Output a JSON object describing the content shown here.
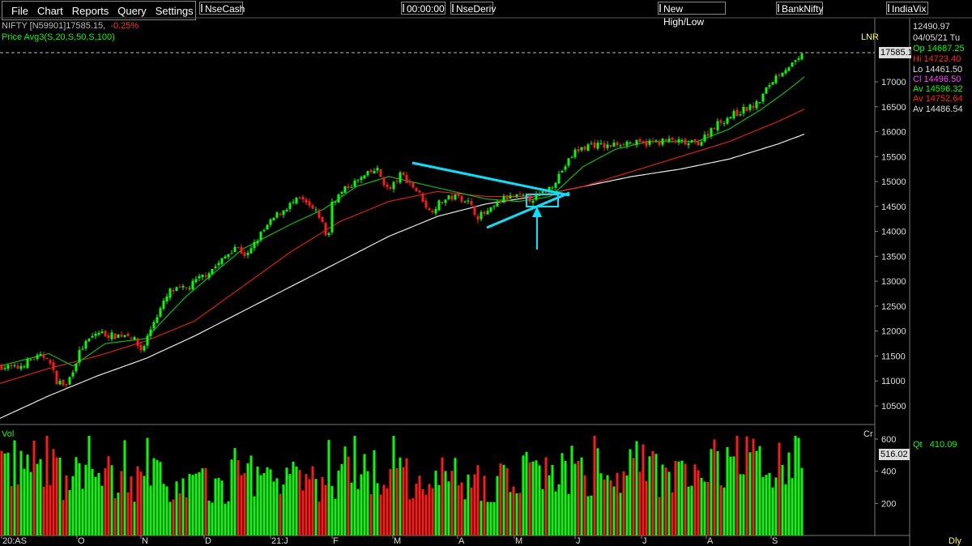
{
  "menu": [
    "File",
    "Chart",
    "Reports",
    "Query",
    "Settings"
  ],
  "toolbar": {
    "nsecash": "NseCash",
    "clock": "00:00:00",
    "nsederiv": "NseDeriv",
    "newhighlow": "New High/Low",
    "banknifty": "BankNifty",
    "indiavix": "IndiaVix"
  },
  "header": {
    "symbol": "NIFTY [N59901]",
    "last": "17585.15",
    "change": "-0.25%",
    "indicator": "Price  Avg3(S,20,S,50,S,100)"
  },
  "info": {
    "top": "12490.97",
    "date": "04/05/21 Tu",
    "op": "Op 14687.25",
    "hi": "Hi  14723.40",
    "lo": "Lo  14461.50",
    "cl": "Cl  14496.50",
    "av1": "Av 14596.32",
    "av2": "Av 14752.64",
    "av3": "Av 14486.54"
  },
  "lnr": "LNR",
  "current_price_box": "17585.1",
  "vol_label": "Vol",
  "cr_label": "Cr",
  "qt": "Qt",
  "qt_value": "410.09",
  "vol_box": "516.02",
  "dly": "Dly",
  "colors": {
    "up": "#00ff00",
    "down": "#ff1a1a",
    "ma20": "#00c000",
    "ma50": "#e01818",
    "ma100": "#e8e8e8",
    "annot": "#00e5ff"
  },
  "chart_data": {
    "type": "candlestick",
    "price_axis": {
      "ticks": [
        10500,
        11000,
        11500,
        12000,
        12500,
        13000,
        13500,
        14000,
        14500,
        15000,
        15500,
        16000,
        16500,
        17000
      ],
      "range": [
        10200,
        17900
      ]
    },
    "volume_axis": {
      "ticks": [
        200,
        400,
        600
      ],
      "range": [
        0,
        640
      ]
    },
    "x_labels": [
      "20:AS",
      "O",
      "N",
      "D",
      "21:J",
      "F",
      "M",
      "A",
      "M",
      "J",
      "J",
      "A",
      "S"
    ],
    "close_points": [
      [
        0,
        11300
      ],
      [
        20,
        11250
      ],
      [
        40,
        11450
      ],
      [
        58,
        11500
      ],
      [
        70,
        11000
      ],
      [
        82,
        10900
      ],
      [
        100,
        11650
      ],
      [
        120,
        11980
      ],
      [
        140,
        11900
      ],
      [
        160,
        11950
      ],
      [
        175,
        11600
      ],
      [
        190,
        12200
      ],
      [
        210,
        12800
      ],
      [
        230,
        12850
      ],
      [
        250,
        13100
      ],
      [
        270,
        13350
      ],
      [
        290,
        13700
      ],
      [
        305,
        13500
      ],
      [
        320,
        13900
      ],
      [
        340,
        14300
      ],
      [
        355,
        14500
      ],
      [
        370,
        14650
      ],
      [
        385,
        14450
      ],
      [
        395,
        14300
      ],
      [
        405,
        13800
      ],
      [
        410,
        14600
      ],
      [
        430,
        14900
      ],
      [
        450,
        15100
      ],
      [
        465,
        15250
      ],
      [
        480,
        14800
      ],
      [
        495,
        15150
      ],
      [
        510,
        14900
      ],
      [
        520,
        14700
      ],
      [
        530,
        14400
      ],
      [
        545,
        14600
      ],
      [
        560,
        14700
      ],
      [
        575,
        14650
      ],
      [
        590,
        14300
      ],
      [
        605,
        14400
      ],
      [
        620,
        14650
      ],
      [
        640,
        14700
      ],
      [
        655,
        14650
      ],
      [
        670,
        14750
      ],
      [
        680,
        14900
      ],
      [
        695,
        15250
      ],
      [
        710,
        15600
      ],
      [
        730,
        15750
      ],
      [
        750,
        15700
      ],
      [
        770,
        15800
      ],
      [
        790,
        15750
      ],
      [
        810,
        15800
      ],
      [
        830,
        15820
      ],
      [
        850,
        15750
      ],
      [
        865,
        15800
      ],
      [
        880,
        16100
      ],
      [
        900,
        16300
      ],
      [
        920,
        16450
      ],
      [
        935,
        16550
      ],
      [
        950,
        16950
      ],
      [
        960,
        17150
      ],
      [
        972,
        17300
      ],
      [
        985,
        17400
      ],
      [
        993,
        17585
      ]
    ],
    "ma20": [
      [
        0,
        11300
      ],
      [
        60,
        11550
      ],
      [
        90,
        11300
      ],
      [
        130,
        11750
      ],
      [
        180,
        11850
      ],
      [
        230,
        12700
      ],
      [
        300,
        13650
      ],
      [
        360,
        14150
      ],
      [
        400,
        14450
      ],
      [
        440,
        14900
      ],
      [
        480,
        15100
      ],
      [
        520,
        14950
      ],
      [
        560,
        14800
      ],
      [
        600,
        14650
      ],
      [
        640,
        14600
      ],
      [
        680,
        14700
      ],
      [
        720,
        15300
      ],
      [
        760,
        15650
      ],
      [
        800,
        15800
      ],
      [
        860,
        15800
      ],
      [
        900,
        16050
      ],
      [
        940,
        16450
      ],
      [
        970,
        16800
      ],
      [
        993,
        17100
      ]
    ],
    "ma50": [
      [
        0,
        10950
      ],
      [
        60,
        11250
      ],
      [
        120,
        11500
      ],
      [
        180,
        11800
      ],
      [
        240,
        12200
      ],
      [
        300,
        12900
      ],
      [
        360,
        13600
      ],
      [
        420,
        14200
      ],
      [
        480,
        14600
      ],
      [
        540,
        14800
      ],
      [
        600,
        14700
      ],
      [
        660,
        14700
      ],
      [
        720,
        14900
      ],
      [
        780,
        15200
      ],
      [
        840,
        15500
      ],
      [
        900,
        15800
      ],
      [
        960,
        16200
      ],
      [
        993,
        16450
      ]
    ],
    "ma100": [
      [
        0,
        10250
      ],
      [
        60,
        10700
      ],
      [
        120,
        11100
      ],
      [
        180,
        11450
      ],
      [
        240,
        11900
      ],
      [
        300,
        12400
      ],
      [
        360,
        12900
      ],
      [
        420,
        13400
      ],
      [
        480,
        13900
      ],
      [
        540,
        14300
      ],
      [
        600,
        14550
      ],
      [
        660,
        14700
      ],
      [
        720,
        14900
      ],
      [
        780,
        15100
      ],
      [
        840,
        15250
      ],
      [
        900,
        15450
      ],
      [
        960,
        15750
      ],
      [
        993,
        15950
      ]
    ],
    "volume_mean": [
      480,
      400,
      380,
      330,
      420,
      360,
      430,
      380,
      360,
      440,
      420,
      430,
      480,
      520
    ]
  }
}
